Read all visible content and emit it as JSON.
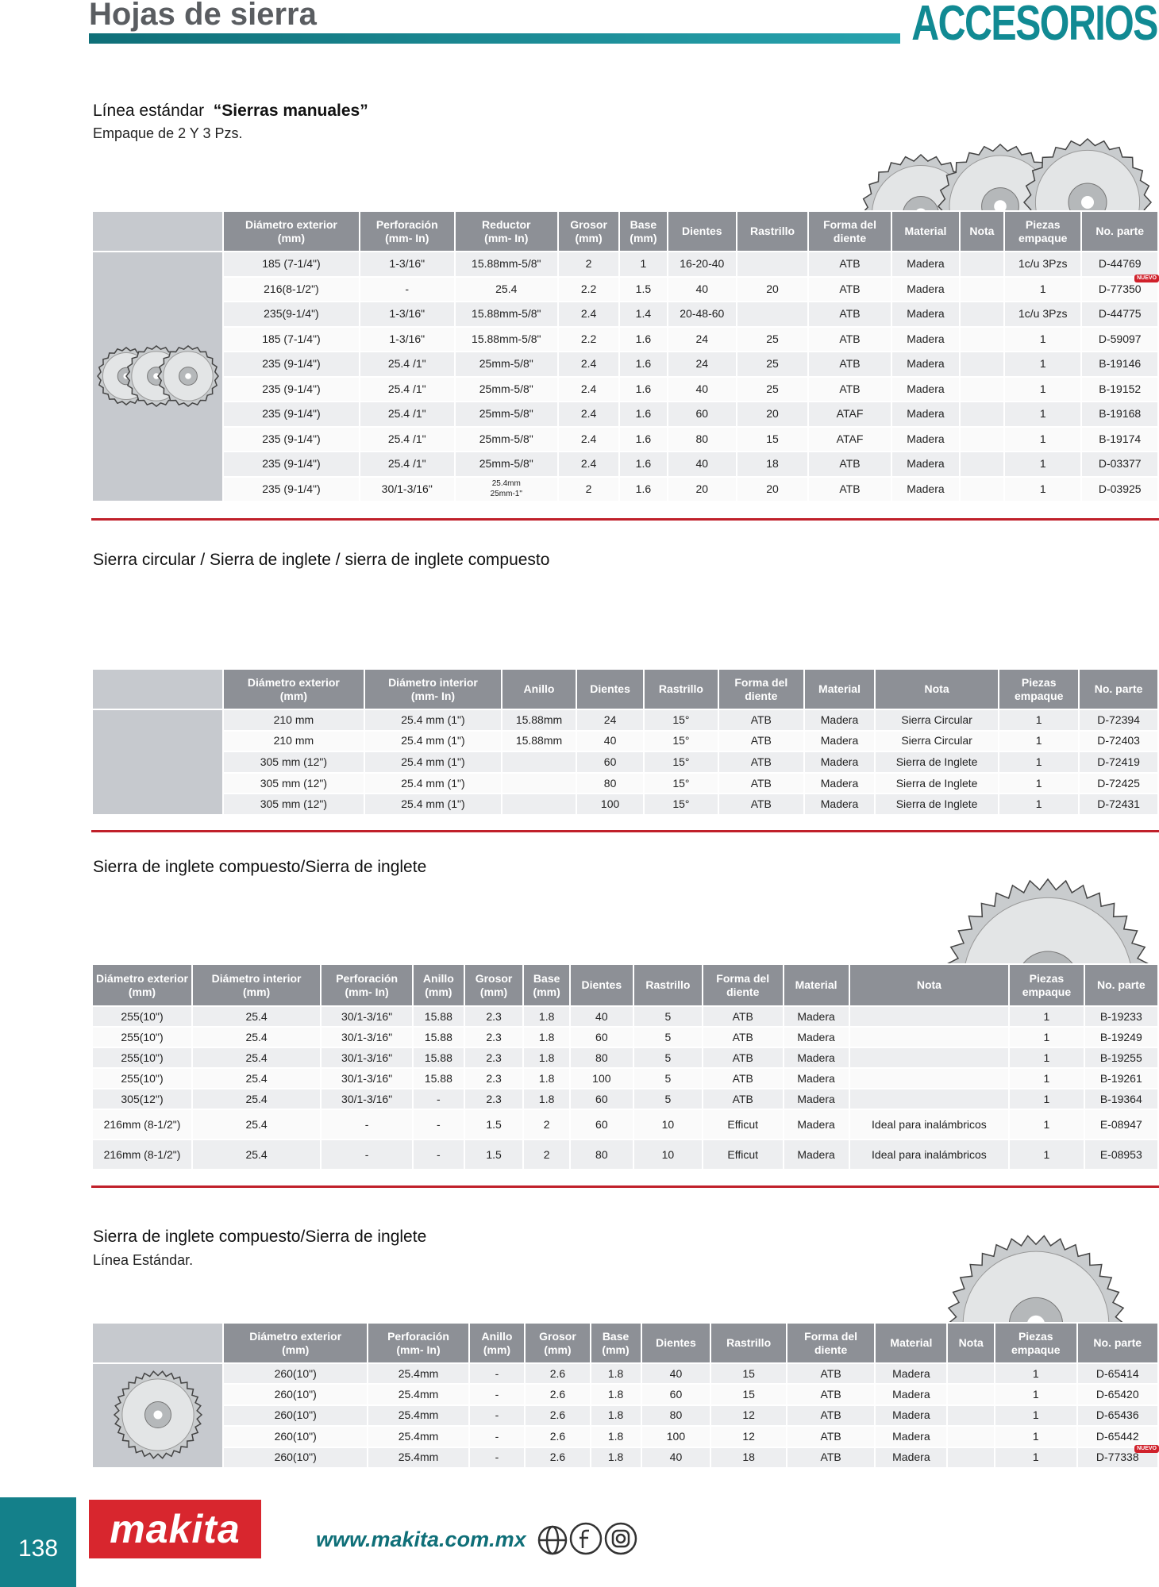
{
  "header": {
    "title": "Hojas de sierra",
    "brand": "ACCESORIOS"
  },
  "sections": [
    {
      "title_prefix": "Línea estándar",
      "title": "“Sierras manuales”",
      "subtitle": "Empaque de 2 Y 3 Pzs.",
      "badge": "NUEVO",
      "table": {
        "headers": [
          "Diámetro exterior\n(mm)",
          "Perforación\n(mm- In)",
          "Reductor\n(mm- In)",
          "Grosor\n(mm)",
          "Base\n(mm)",
          "Dientes",
          "Rastrillo",
          "Forma del\ndiente",
          "Material",
          "Nota",
          "Piezas\nempaque",
          "No. parte"
        ],
        "rows": [
          [
            "185 (7-1/4\")",
            "1-3/16\"",
            "15.88mm-5/8\"",
            "2",
            "1",
            "16-20-40",
            null,
            "ATB",
            "Madera",
            null,
            "1c/u 3Pzs",
            "D-44769"
          ],
          [
            "216(8-1/2\")",
            "-",
            "25.4",
            "2.2",
            "1.5",
            "40",
            "20",
            "ATB",
            "Madera",
            null,
            "1",
            "D-77350"
          ],
          [
            "235(9-1/4\")",
            "1-3/16\"",
            "15.88mm-5/8\"",
            "2.4",
            "1.4",
            "20-48-60",
            null,
            "ATB",
            "Madera",
            null,
            "1c/u 3Pzs",
            "D-44775"
          ],
          [
            "185 (7-1/4\")",
            "1-3/16\"",
            "15.88mm-5/8\"",
            "2.2",
            "1.6",
            "24",
            "25",
            "ATB",
            "Madera",
            null,
            "1",
            "D-59097"
          ],
          [
            "235 (9-1/4\")",
            "25.4 /1\"",
            "25mm-5/8\"",
            "2.4",
            "1.6",
            "24",
            "25",
            "ATB",
            "Madera",
            null,
            "1",
            "B-19146"
          ],
          [
            "235 (9-1/4\")",
            "25.4 /1\"",
            "25mm-5/8\"",
            "2.4",
            "1.6",
            "40",
            "25",
            "ATB",
            "Madera",
            null,
            "1",
            "B-19152"
          ],
          [
            "235 (9-1/4\")",
            "25.4 /1\"",
            "25mm-5/8\"",
            "2.4",
            "1.6",
            "60",
            "20",
            "ATAF",
            "Madera",
            null,
            "1",
            "B-19168"
          ],
          [
            "235 (9-1/4\")",
            "25.4 /1\"",
            "25mm-5/8\"",
            "2.4",
            "1.6",
            "80",
            "15",
            "ATAF",
            "Madera",
            null,
            "1",
            "B-19174"
          ],
          [
            "235 (9-1/4\")",
            "25.4 /1\"",
            "25mm-5/8\"",
            "2.4",
            "1.6",
            "40",
            "18",
            "ATB",
            "Madera",
            null,
            "1",
            "D-03377"
          ],
          [
            "235 (9-1/4\")",
            "30/1-3/16\"",
            "25.4mm\n25mm-1\"",
            "2",
            "1.6",
            "20",
            "20",
            "ATB",
            "Madera",
            null,
            "1",
            "D-03925"
          ]
        ]
      }
    },
    {
      "title": "Sierra circular / Sierra de inglete / sierra de inglete compuesto",
      "table": {
        "headers": [
          "Diámetro exterior\n(mm)",
          "Diámetro interior\n(mm- In)",
          "Anillo",
          "Dientes",
          "Rastrillo",
          "Forma del\ndiente",
          "Material",
          "Nota",
          "Piezas\nempaque",
          "No. parte"
        ],
        "rows": [
          [
            "210 mm",
            "25.4 mm (1\")",
            "15.88mm",
            "24",
            "15°",
            "ATB",
            "Madera",
            "Sierra Circular",
            "1",
            "D-72394"
          ],
          [
            "210 mm",
            "25.4 mm (1\")",
            "15.88mm",
            "40",
            "15°",
            "ATB",
            "Madera",
            "Sierra Circular",
            "1",
            "D-72403"
          ],
          [
            "305 mm (12\")",
            "25.4 mm (1\")",
            null,
            "60",
            "15°",
            "ATB",
            "Madera",
            "Sierra de Inglete",
            "1",
            "D-72419"
          ],
          [
            "305 mm (12\")",
            "25.4 mm (1\")",
            null,
            "80",
            "15°",
            "ATB",
            "Madera",
            "Sierra de Inglete",
            "1",
            "D-72425"
          ],
          [
            "305 mm (12\")",
            "25.4 mm (1\")",
            null,
            "100",
            "15°",
            "ATB",
            "Madera",
            "Sierra de Inglete",
            "1",
            "D-72431"
          ]
        ]
      }
    },
    {
      "title": "Sierra de inglete compuesto/Sierra de inglete",
      "table": {
        "headers": [
          "Diámetro exterior\n(mm)",
          "Diámetro interior\n(mm)",
          "Perforación\n(mm- In)",
          "Anillo\n(mm)",
          "Grosor\n(mm)",
          "Base\n(mm)",
          "Dientes",
          "Rastrillo",
          "Forma del\ndiente",
          "Material",
          "Nota",
          "Piezas\nempaque",
          "No. parte"
        ],
        "rows": [
          [
            "255(10\")",
            "25.4",
            "30/1-3/16\"",
            "15.88",
            "2.3",
            "1.8",
            "40",
            "5",
            "ATB",
            "Madera",
            null,
            "1",
            "B-19233"
          ],
          [
            "255(10\")",
            "25.4",
            "30/1-3/16\"",
            "15.88",
            "2.3",
            "1.8",
            "60",
            "5",
            "ATB",
            "Madera",
            null,
            "1",
            "B-19249"
          ],
          [
            "255(10\")",
            "25.4",
            "30/1-3/16\"",
            "15.88",
            "2.3",
            "1.8",
            "80",
            "5",
            "ATB",
            "Madera",
            null,
            "1",
            "B-19255"
          ],
          [
            "255(10\")",
            "25.4",
            "30/1-3/16\"",
            "15.88",
            "2.3",
            "1.8",
            "100",
            "5",
            "ATB",
            "Madera",
            null,
            "1",
            "B-19261"
          ],
          [
            "305(12\")",
            "25.4",
            "30/1-3/16\"",
            "-",
            "2.3",
            "1.8",
            "60",
            "5",
            "ATB",
            "Madera",
            null,
            "1",
            "B-19364"
          ],
          [
            "216mm (8-1/2\")",
            "25.4",
            "-",
            "-",
            "1.5",
            "2",
            "60",
            "10",
            "Efficut",
            "Madera",
            "Ideal para inalámbricos",
            "1",
            "E-08947"
          ],
          [
            "216mm (8-1/2\")",
            "25.4",
            "-",
            "-",
            "1.5",
            "2",
            "80",
            "10",
            "Efficut",
            "Madera",
            "Ideal para inalámbricos",
            "1",
            "E-08953"
          ]
        ]
      }
    },
    {
      "title": "Sierra de inglete compuesto/Sierra de inglete",
      "subtitle": "Línea Estándar.",
      "badge": "NUEVO",
      "table": {
        "headers": [
          "Diámetro exterior\n(mm)",
          "Perforación\n(mm- In)",
          "Anillo\n(mm)",
          "Grosor\n(mm)",
          "Base\n(mm)",
          "Dientes",
          "Rastrillo",
          "Forma del\ndiente",
          "Material",
          "Nota",
          "Piezas\nempaque",
          "No. parte"
        ],
        "rows": [
          [
            "260(10\")",
            "25.4mm",
            "-",
            "2.6",
            "1.8",
            "40",
            "15",
            "ATB",
            "Madera",
            null,
            "1",
            "D-65414"
          ],
          [
            "260(10\")",
            "25.4mm",
            "-",
            "2.6",
            "1.8",
            "60",
            "15",
            "ATB",
            "Madera",
            null,
            "1",
            "D-65420"
          ],
          [
            "260(10\")",
            "25.4mm",
            "-",
            "2.6",
            "1.8",
            "80",
            "12",
            "ATB",
            "Madera",
            null,
            "1",
            "D-65436"
          ],
          [
            "260(10\")",
            "25.4mm",
            "-",
            "2.6",
            "1.8",
            "100",
            "12",
            "ATB",
            "Madera",
            null,
            "1",
            "D-65442"
          ],
          [
            "260(10\")",
            "25.4mm",
            "-",
            "2.6",
            "1.8",
            "40",
            "18",
            "ATB",
            "Madera",
            null,
            "1",
            "D-77338"
          ]
        ]
      }
    }
  ],
  "footer": {
    "page": "138",
    "logo": "makita",
    "url": "www.makita.com.mx"
  }
}
